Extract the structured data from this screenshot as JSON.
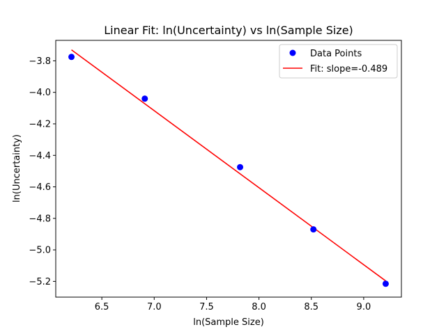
{
  "chart_data": {
    "type": "scatter",
    "title": "Linear Fit: ln(Uncertainty) vs ln(Sample Size)",
    "xlabel": "ln(Sample Size)",
    "ylabel": "ln(Uncertainty)",
    "xlim": [
      6.06,
      9.36
    ],
    "ylim": [
      -5.3,
      -3.67
    ],
    "xticks": [
      6.5,
      7.0,
      7.5,
      8.0,
      8.5,
      9.0
    ],
    "xtick_labels": [
      "6.5",
      "7.0",
      "7.5",
      "8.0",
      "8.5",
      "9.0"
    ],
    "yticks": [
      -3.8,
      -4.0,
      -4.2,
      -4.4,
      -4.6,
      -4.8,
      -5.0,
      -5.2
    ],
    "ytick_labels": [
      "−3.8",
      "−4.0",
      "−4.2",
      "−4.4",
      "−4.6",
      "−4.8",
      "−5.0",
      "−5.2"
    ],
    "grid": false,
    "legend_position": "top-right",
    "series": [
      {
        "name": "Data Points",
        "kind": "scatter",
        "color": "#0000ff",
        "x": [
          6.21,
          6.91,
          7.82,
          8.52,
          9.21
        ],
        "y": [
          -3.775,
          -4.04,
          -4.475,
          -4.87,
          -5.215
        ]
      },
      {
        "name": "Fit: slope=-0.489",
        "kind": "line",
        "color": "#ff0000",
        "x": [
          6.21,
          9.21
        ],
        "y": [
          -3.73,
          -5.197
        ]
      }
    ]
  }
}
